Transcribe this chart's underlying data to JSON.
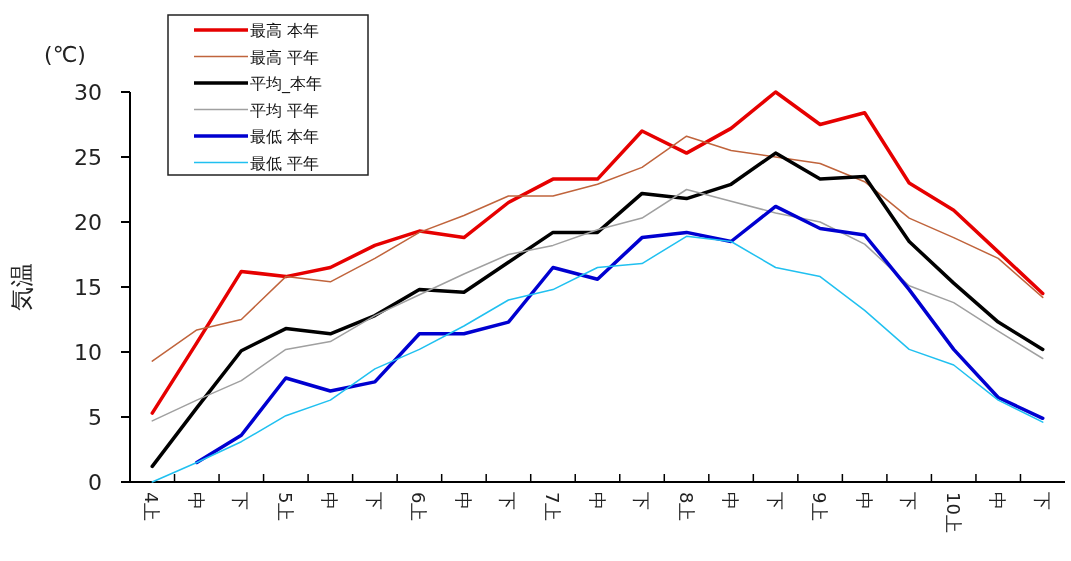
{
  "chart_data": {
    "type": "line",
    "ylabel": "気温",
    "annotations": [
      "(℃)"
    ],
    "categories": [
      "4上",
      "中",
      "下",
      "5上",
      "中",
      "下",
      "6上",
      "中",
      "下",
      "7上",
      "中",
      "下",
      "8上",
      "中",
      "下",
      "9上",
      "中",
      "下",
      "10上",
      "中",
      "下"
    ],
    "ylim": [
      0,
      30
    ],
    "yticks": [
      0,
      5,
      10,
      15,
      20,
      25,
      30
    ],
    "grid": false,
    "legend": "top left",
    "marker": "none",
    "line_style": "solid",
    "series": [
      {
        "name": "最高 本年",
        "color": "#e60000",
        "values": [
          5.3,
          10.7,
          16.2,
          15.8,
          16.5,
          18.2,
          19.3,
          18.8,
          21.5,
          23.3,
          23.3,
          27,
          25.3,
          27.2,
          30,
          27.5,
          28.4,
          23,
          20.9,
          17.7,
          14.5
        ]
      },
      {
        "name": "最高 平年",
        "color": "#c0643c",
        "values": [
          9.3,
          11.7,
          12.5,
          15.8,
          15.4,
          17.2,
          19.2,
          20.5,
          22,
          22,
          22.9,
          24.2,
          26.6,
          25.5,
          25,
          24.5,
          23.1,
          20.3,
          18.8,
          17.2,
          14.2
        ]
      },
      {
        "name": "平均_本年",
        "color": "#000000",
        "values": [
          1.2,
          5.7,
          10.1,
          11.8,
          11.4,
          12.8,
          14.8,
          14.6,
          16.9,
          19.2,
          19.2,
          22.2,
          21.8,
          22.9,
          25.3,
          23.3,
          23.5,
          18.5,
          15.3,
          12.3,
          10.2
        ]
      },
      {
        "name": "平均 平年",
        "color": "#a0a0a0",
        "values": [
          4.7,
          6.3,
          7.8,
          10.2,
          10.8,
          12.8,
          14.4,
          16,
          17.5,
          18.2,
          19.4,
          20.3,
          22.5,
          21.6,
          20.7,
          20,
          18.3,
          15.1,
          13.8,
          11.6,
          9.5
        ]
      },
      {
        "name": "最低 本年",
        "color": "#0000d0",
        "values": [
          null,
          1.5,
          3.6,
          8,
          7,
          7.7,
          11.4,
          11.4,
          12.3,
          16.5,
          15.6,
          18.8,
          19.2,
          18.5,
          21.2,
          19.5,
          19,
          14.8,
          10.2,
          6.5,
          4.9
        ]
      },
      {
        "name": "最低 平年",
        "color": "#20c0f0",
        "values": [
          0,
          1.5,
          3.1,
          5.1,
          6.3,
          8.7,
          10.2,
          12,
          14,
          14.8,
          16.5,
          16.8,
          18.9,
          18.5,
          16.5,
          15.8,
          13.2,
          10.2,
          9,
          6.3,
          4.6
        ]
      }
    ]
  }
}
